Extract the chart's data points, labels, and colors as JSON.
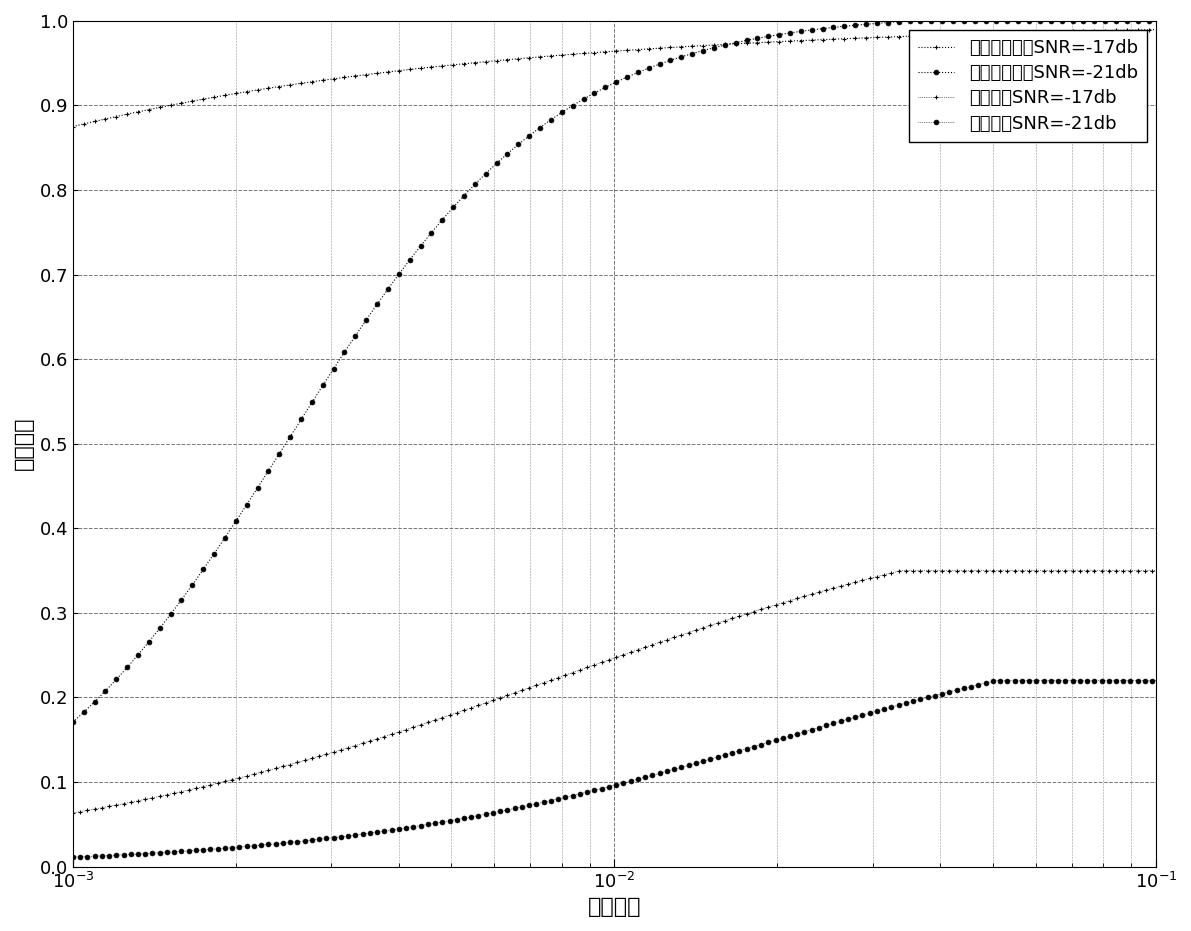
{
  "xlabel": "虚警概率",
  "ylabel": "检测概率",
  "xlim": [
    0.001,
    0.1
  ],
  "ylim": [
    0,
    1.0
  ],
  "yticks": [
    0,
    0.1,
    0.2,
    0.3,
    0.4,
    0.5,
    0.6,
    0.7,
    0.8,
    0.9,
    1.0
  ],
  "legend": [
    "特征循环频率SNR=-17db",
    "特征循环频率SNR=-21db",
    "能量检测SNR=-17db",
    "能量检测SNR=-21db"
  ],
  "background_color": "#ffffff",
  "grid_color": "#555555",
  "line_color": "#000000",
  "n_points": 300,
  "n_markers_dense": 120,
  "n_markers_sparse": 40
}
